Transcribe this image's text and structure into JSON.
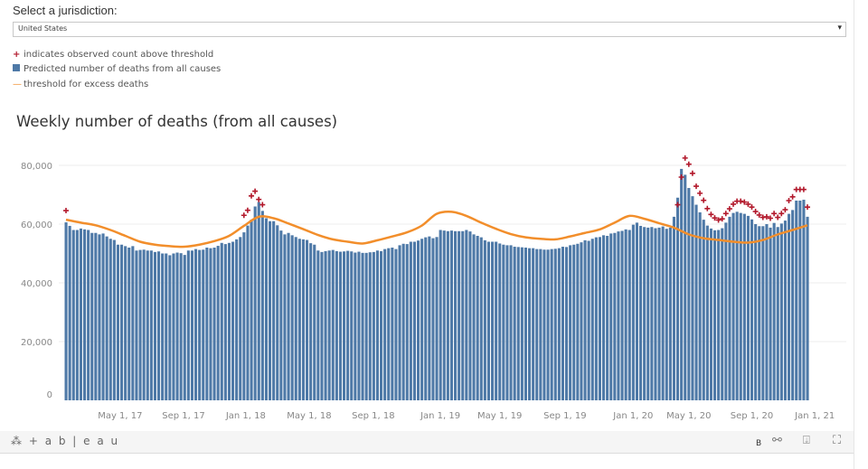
{
  "filter": {
    "label": "Select a jurisdiction:",
    "selected": "United States"
  },
  "legend": [
    {
      "symbol": "+",
      "label": "indicates observed count above threshold"
    },
    {
      "symbol": "square",
      "label": "Predicted number of deaths from all causes"
    },
    {
      "symbol": "—",
      "label": "threshold for excess deaths"
    }
  ],
  "colors": {
    "bar": "#4e79a7",
    "threshold": "#f28e2b",
    "marker": "#b2182b"
  },
  "footer": {
    "logo": "+ a b | e a u",
    "b_label": "B"
  },
  "chart_data": {
    "type": "bar",
    "title": "Weekly number of deaths (from all causes)",
    "xlabel": "",
    "ylabel": "",
    "ylim": [
      0,
      80000
    ],
    "yticks": [
      {
        "v": 0,
        "label": "0"
      },
      {
        "v": 20000,
        "label": "20,000"
      },
      {
        "v": 40000,
        "label": "40,000"
      },
      {
        "v": 60000,
        "label": "60,000"
      },
      {
        "v": 80000,
        "label": "80,000"
      }
    ],
    "xticks_week_index": [
      {
        "w": 14.6,
        "label": "May 1, 17"
      },
      {
        "w": 31.7,
        "label": "Sep 1, 17"
      },
      {
        "w": 48.5,
        "label": "Jan 1, 18"
      },
      {
        "w": 65.6,
        "label": "May 1, 18"
      },
      {
        "w": 82.9,
        "label": "Sep 1, 18"
      },
      {
        "w": 101,
        "label": "Jan 1, 19"
      },
      {
        "w": 117,
        "label": "May 1, 19"
      },
      {
        "w": 134.6,
        "label": "Sep 1, 19"
      },
      {
        "w": 153,
        "label": "Jan 1, 20"
      },
      {
        "w": 168,
        "label": "May 1, 20"
      },
      {
        "w": 185,
        "label": "Sep 1, 20"
      },
      {
        "w": 202,
        "label": "Jan 1, 21"
      }
    ],
    "grid": true,
    "predicted_weekly_thousands": [
      60.6,
      59.4,
      58.0,
      58.0,
      58.5,
      58.2,
      58.0,
      57.0,
      57.0,
      56.5,
      56.8,
      55.8,
      55.0,
      54.6,
      53.0,
      53.0,
      52.5,
      52.0,
      52.5,
      51.0,
      51.2,
      51.3,
      51.0,
      51.0,
      50.5,
      50.7,
      50.0,
      50.0,
      49.4,
      50.0,
      50.3,
      50.1,
      49.5,
      51.0,
      51.0,
      51.5,
      51.2,
      51.3,
      52.0,
      51.8,
      52.0,
      52.6,
      53.6,
      53.2,
      53.6,
      54.0,
      54.8,
      55.6,
      57.2,
      59.5,
      61.5,
      66.0,
      67.5,
      64.5,
      62.0,
      61.0,
      61.0,
      59.6,
      57.8,
      56.5,
      57.0,
      56.2,
      55.6,
      55.0,
      54.8,
      54.6,
      53.5,
      53.0,
      51.0,
      50.5,
      50.8,
      51.0,
      51.2,
      50.8,
      50.6,
      50.7,
      50.9,
      50.7,
      50.3,
      50.6,
      50.2,
      50.2,
      50.4,
      50.5,
      51.0,
      50.8,
      51.5,
      51.8,
      52.0,
      51.5,
      52.8,
      53.3,
      53.2,
      54.0,
      54.0,
      54.4,
      55.0,
      55.5,
      55.8,
      55.2,
      55.6,
      58.0,
      57.8,
      57.6,
      57.8,
      57.6,
      57.6,
      57.6,
      58.0,
      57.5,
      56.5,
      56.0,
      55.5,
      54.5,
      54.0,
      54.0,
      54.0,
      53.4,
      53.0,
      52.8,
      52.8,
      52.3,
      52.2,
      52.1,
      52.0,
      51.8,
      51.8,
      51.5,
      51.5,
      51.3,
      51.3,
      51.5,
      51.6,
      51.8,
      52.3,
      52.2,
      52.8,
      53.0,
      53.3,
      53.8,
      54.5,
      54.3,
      55.0,
      55.5,
      55.6,
      56.2,
      56.0,
      56.8,
      57.0,
      57.5,
      57.7,
      58.2,
      58.0,
      59.8,
      60.5,
      59.4,
      59.0,
      58.8,
      59.0,
      58.6,
      58.8,
      59.2,
      58.4,
      58.8,
      62.5,
      69.0,
      78.8,
      76.8,
      72.3,
      69.5,
      66.6,
      64.0,
      61.5,
      59.5,
      58.5,
      57.9,
      58.0,
      58.6,
      60.5,
      62.5,
      63.8,
      64.2,
      63.8,
      63.5,
      62.8,
      61.6,
      60.0,
      59.3,
      59.3,
      60.0,
      58.8,
      60.4,
      59.0,
      60.2,
      61.2,
      63.5,
      64.8,
      68.0,
      68.0,
      68.3,
      62.5
    ],
    "threshold_every_4_weeks_thousands": [
      61.5,
      60.5,
      59.6,
      58.0,
      56.0,
      54.0,
      53.0,
      52.5,
      52.3,
      53.0,
      54.2,
      56.0,
      59.4,
      62.5,
      62.0,
      60.2,
      58.3,
      56.3,
      54.8,
      54.0,
      53.4,
      54.5,
      55.8,
      57.2,
      59.5,
      63.5,
      64.2,
      62.8,
      60.5,
      58.4,
      56.6,
      55.5,
      55.0,
      54.8,
      55.8,
      57.0,
      58.2,
      60.5,
      62.8,
      61.8,
      60.3,
      58.8,
      56.5,
      55.2,
      54.6,
      54.0,
      53.7,
      54.6,
      56.5,
      58.0,
      59.6
    ],
    "observed_above_threshold": [
      {
        "start_week": 0,
        "values_thousands": [
          64.6
        ]
      },
      {
        "start_week": 48,
        "values_thousands": [
          63.0,
          64.7,
          69.6,
          71.2,
          68.4,
          66.6
        ]
      },
      {
        "start_week": 165,
        "values_thousands": [
          66.6,
          76.0,
          82.5,
          80.4,
          77.3,
          72.9,
          70.5,
          68.1,
          65.3,
          63.3,
          62.1,
          61.4,
          61.8,
          63.6,
          65.2,
          66.8,
          67.8,
          67.8,
          67.5,
          66.8,
          65.8,
          64.3,
          63.1,
          62.3,
          62.5,
          62.0,
          63.6,
          62.3,
          63.6,
          64.9,
          68.0,
          69.3,
          71.8,
          71.8,
          71.8,
          65.8
        ]
      }
    ]
  }
}
